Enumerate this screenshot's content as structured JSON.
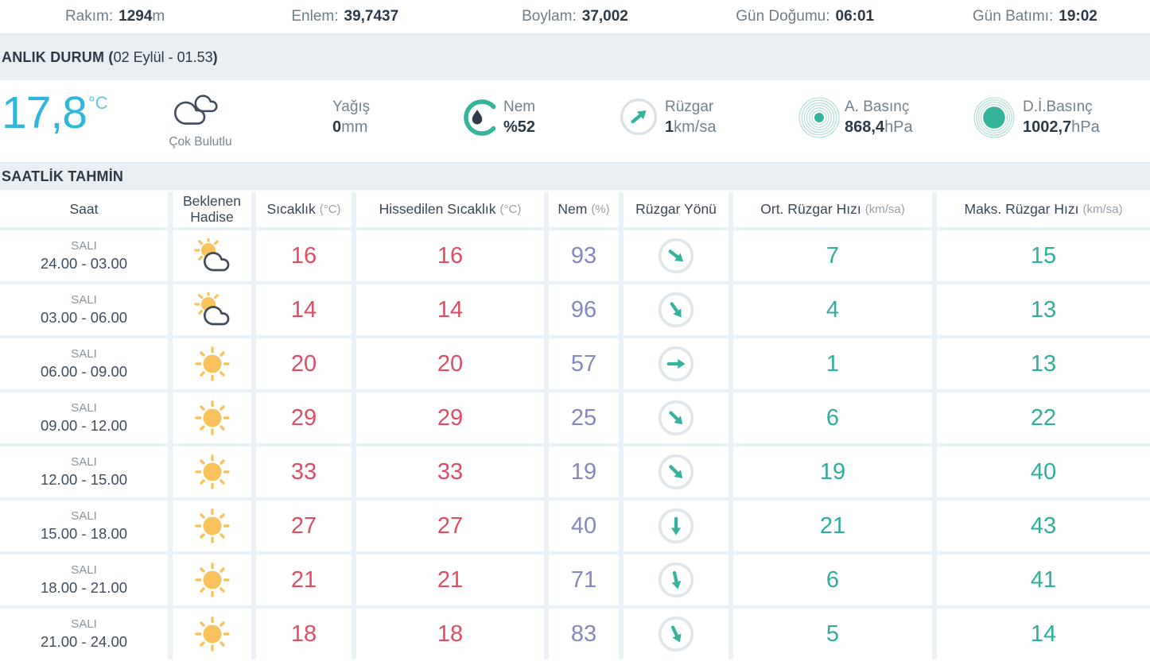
{
  "topbar": {
    "items": [
      {
        "label": "Rakım:",
        "value": "1294",
        "unit": "m"
      },
      {
        "label": "Enlem:",
        "value": "39,7437",
        "unit": ""
      },
      {
        "label": "Boylam:",
        "value": "37,002",
        "unit": ""
      },
      {
        "label": "Gün Doğumu:",
        "value": "06:01",
        "unit": ""
      },
      {
        "label": "Gün Batımı:",
        "value": "19:02",
        "unit": ""
      }
    ]
  },
  "current": {
    "title_prefix": "ANLIK DURUM (",
    "title_date": "02 Eylül - 01.53",
    "title_suffix": ")",
    "temperature": {
      "value": "17,8",
      "unit": "°C"
    },
    "condition": {
      "label": "Çok Bulutlu",
      "icon": "clouds-icon"
    },
    "precipitation": {
      "label": "Yağış",
      "value": "0",
      "unit": "mm"
    },
    "humidity": {
      "label": "Nem",
      "prefix": "%",
      "value": "52"
    },
    "wind": {
      "label": "Rüzgar",
      "value": "1",
      "unit": "km/sa",
      "direction_deg": -40
    },
    "actual_pressure": {
      "label": "A. Basınç",
      "value": "868,4",
      "unit": "hPa"
    },
    "sea_level_pressure": {
      "label": "D.İ.Basınç",
      "value": "1002,7",
      "unit": "hPa"
    }
  },
  "hourly": {
    "title": "SAATLİK TAHMİN",
    "columns": [
      {
        "label": "Saat",
        "unit": ""
      },
      {
        "label": "Beklenen Hadise",
        "unit": ""
      },
      {
        "label": "Sıcaklık",
        "unit": "(°C)"
      },
      {
        "label": "Hissedilen Sıcaklık",
        "unit": "(°C)"
      },
      {
        "label": "Nem",
        "unit": "(%)"
      },
      {
        "label": "Rüzgar Yönü",
        "unit": ""
      },
      {
        "label": "Ort. Rüzgar Hızı",
        "unit": "(km/sa)"
      },
      {
        "label": "Maks. Rüzgar Hızı",
        "unit": "(km/sa)"
      }
    ],
    "rows": [
      {
        "day": "SALI",
        "time": "24.00 - 03.00",
        "icon": "sun-cloud-icon",
        "temp": "16",
        "feels": "16",
        "humidity": "93",
        "wind_dir_deg": 38,
        "wind_avg": "7",
        "wind_max": "15"
      },
      {
        "day": "SALI",
        "time": "03.00 - 06.00",
        "icon": "sun-cloud-icon",
        "temp": "14",
        "feels": "14",
        "humidity": "96",
        "wind_dir_deg": 55,
        "wind_avg": "4",
        "wind_max": "13"
      },
      {
        "day": "SALI",
        "time": "06.00 - 09.00",
        "icon": "sun-icon",
        "temp": "20",
        "feels": "20",
        "humidity": "57",
        "wind_dir_deg": 0,
        "wind_avg": "1",
        "wind_max": "13"
      },
      {
        "day": "SALI",
        "time": "09.00 - 12.00",
        "icon": "sun-icon",
        "temp": "29",
        "feels": "29",
        "humidity": "25",
        "wind_dir_deg": 45,
        "wind_avg": "6",
        "wind_max": "22"
      },
      {
        "day": "SALI",
        "time": "12.00 - 15.00",
        "icon": "sun-icon",
        "temp": "33",
        "feels": "33",
        "humidity": "19",
        "wind_dir_deg": 45,
        "wind_avg": "19",
        "wind_max": "40"
      },
      {
        "day": "SALI",
        "time": "15.00 - 18.00",
        "icon": "sun-icon",
        "temp": "27",
        "feels": "27",
        "humidity": "40",
        "wind_dir_deg": 90,
        "wind_avg": "21",
        "wind_max": "43"
      },
      {
        "day": "SALI",
        "time": "18.00 - 21.00",
        "icon": "sun-icon",
        "temp": "21",
        "feels": "21",
        "humidity": "71",
        "wind_dir_deg": 78,
        "wind_avg": "6",
        "wind_max": "41"
      },
      {
        "day": "SALI",
        "time": "21.00 - 24.00",
        "icon": "sun-icon",
        "temp": "18",
        "feels": "18",
        "humidity": "83",
        "wind_dir_deg": 65,
        "wind_avg": "5",
        "wind_max": "14"
      }
    ]
  },
  "colors": {
    "accent_teal": "#35b39b",
    "temperature_cyan": "#2eb6dc",
    "temperature_red": "#e14b63",
    "humidity_purple": "#8587c1",
    "wind_teal": "#2fae9b",
    "sun_yellow": "#f8c35c",
    "cloud_navy": "#3f4b5c",
    "table_background": "#e9f2f7"
  }
}
